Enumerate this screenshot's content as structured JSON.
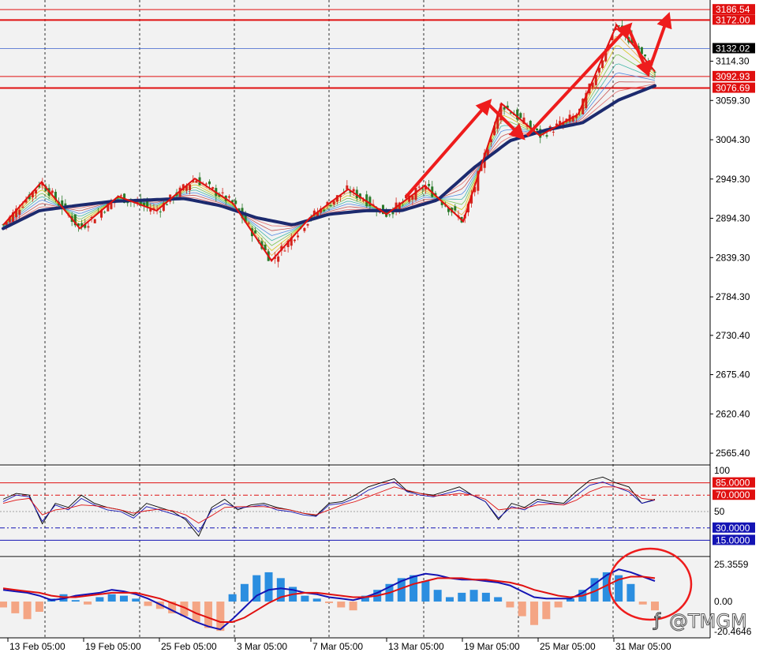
{
  "watermark": "@TMGM",
  "colors": {
    "background": "#ffffff",
    "pane": "#f2f2f2",
    "candle_up": "#d4241c",
    "candle_down": "#2a7a2a",
    "slow_ma": "#1c2a6e",
    "zigzag": "#e01010",
    "annotation": "#ee1c1c",
    "level_line": "#e01010",
    "price_line": "#3a5fcd",
    "hist_pos": "#2b8ee0",
    "hist_neg": "#f4a584",
    "macd_line": "#1414b4",
    "signal_line": "#e01010",
    "grid": "#000000"
  },
  "chart_data": [
    {
      "type": "candlestick",
      "x_tick_labels": [
        "13 Feb 05:00",
        "19 Feb 05:00",
        "25 Feb 05:00",
        "3 Mar 05:00",
        "7 Mar 05:00",
        "13 Mar 05:00",
        "19 Mar 05:00",
        "25 Mar 05:00",
        "31 Mar 05:00"
      ],
      "y_tick_labels": [
        "3114.30",
        "3059.30",
        "3004.30",
        "2949.30",
        "2894.30",
        "2839.30",
        "2784.30",
        "2730.40",
        "2675.40",
        "2620.40",
        "2565.40"
      ],
      "ylim": [
        2550,
        3200
      ],
      "current_price": "3132.02",
      "levels": [
        "3186.54",
        "3172.00",
        "3092.93",
        "3076.69"
      ],
      "zigzag": [
        2885,
        2945,
        2880,
        2925,
        2905,
        2950,
        2915,
        2835,
        2895,
        2935,
        2900,
        2940,
        2890,
        3055,
        3010,
        3040,
        3165,
        3100
      ],
      "slow_ma": [
        2880,
        2905,
        2912,
        2918,
        2920,
        2922,
        2912,
        2895,
        2885,
        2900,
        2905,
        2905,
        2920,
        2965,
        3003,
        3018,
        3028,
        3060,
        3080
      ],
      "arrows": [
        {
          "from": [
            2925,
            2885
          ],
          "to": [
            3055,
            3055
          ]
        },
        {
          "from": [
            3055,
            3055
          ],
          "to": [
            3010,
            3010
          ]
        },
        {
          "from": [
            3010,
            3020
          ],
          "to": [
            3162,
            3162
          ]
        },
        {
          "from": [
            3162,
            3162
          ],
          "to": [
            3100,
            3100
          ]
        },
        {
          "from": [
            3100,
            3100
          ],
          "to": [
            3175,
            3175
          ]
        }
      ]
    },
    {
      "type": "line",
      "y_tick_labels": [
        "100",
        "50"
      ],
      "levels": [
        "85.0000",
        "70.0000",
        "30.0000",
        "15.0000"
      ],
      "ylim": [
        0,
        100
      ],
      "series": [
        {
          "values": [
            65,
            72,
            70,
            35,
            60,
            55,
            70,
            60,
            55,
            52,
            45,
            60,
            55,
            50,
            40,
            20,
            55,
            65,
            52,
            58,
            60,
            55,
            52,
            48,
            45,
            60,
            62,
            70,
            80,
            85,
            90,
            75,
            72,
            70,
            75,
            80,
            70,
            62,
            40,
            60,
            55,
            65,
            62,
            60,
            75,
            88,
            92,
            85,
            80,
            60,
            65
          ]
        },
        {
          "values": [
            62,
            70,
            68,
            38,
            58,
            52,
            66,
            58,
            52,
            50,
            42,
            56,
            52,
            47,
            42,
            25,
            52,
            60,
            54,
            56,
            58,
            52,
            50,
            46,
            44,
            58,
            60,
            66,
            76,
            82,
            86,
            74,
            70,
            68,
            72,
            76,
            70,
            62,
            42,
            56,
            52,
            62,
            60,
            58,
            70,
            82,
            86,
            80,
            74,
            60,
            64
          ]
        },
        {
          "values": [
            60,
            64,
            66,
            46,
            52,
            54,
            58,
            57,
            55,
            52,
            48,
            51,
            53,
            51,
            46,
            36,
            45,
            55,
            56,
            56,
            56,
            54,
            52,
            48,
            46,
            52,
            58,
            62,
            68,
            74,
            80,
            76,
            72,
            69,
            70,
            72,
            70,
            65,
            52,
            54,
            54,
            58,
            59,
            58,
            64,
            74,
            80,
            80,
            76,
            66,
            64
          ]
        }
      ]
    },
    {
      "type": "bar",
      "y_tick_labels": [
        "25.3559",
        "0.00",
        "-20.4646"
      ],
      "ylim": [
        -20.4646,
        25.3559
      ],
      "series": [
        {
          "name": "histogram",
          "values": [
            -4,
            -8,
            -12,
            -7,
            2,
            5,
            1,
            -2,
            3,
            5,
            4,
            2,
            -3,
            -5,
            -8,
            -10,
            -14,
            -18,
            -20,
            5,
            12,
            18,
            20,
            16,
            10,
            4,
            2,
            -1,
            -4,
            -6,
            4,
            8,
            12,
            16,
            18,
            14,
            8,
            3,
            6,
            8,
            6,
            3,
            -4,
            -10,
            -16,
            -12,
            -4,
            2,
            8,
            16,
            20,
            18,
            12,
            -2,
            -6
          ]
        },
        {
          "name": "macd",
          "values": [
            8,
            7,
            6,
            4,
            1,
            2,
            4,
            5,
            6,
            8,
            7,
            5,
            2,
            -2,
            -6,
            -10,
            -14,
            -17,
            -19,
            -12,
            -4,
            4,
            8,
            9,
            8,
            6,
            5,
            3,
            2,
            1,
            3,
            6,
            10,
            14,
            17,
            19,
            18,
            16,
            15,
            15,
            14,
            13,
            11,
            7,
            3,
            2,
            2,
            2,
            6,
            12,
            18,
            22,
            20,
            17,
            14
          ]
        },
        {
          "name": "signal",
          "values": [
            9,
            8,
            7,
            6,
            4,
            3,
            3,
            4,
            5,
            6,
            6,
            6,
            4,
            2,
            -1,
            -4,
            -8,
            -11,
            -14,
            -14,
            -11,
            -6,
            -1,
            3,
            5,
            6,
            6,
            5,
            4,
            3,
            3,
            4,
            6,
            9,
            12,
            14,
            16,
            16,
            16,
            15,
            15,
            14,
            13,
            11,
            8,
            6,
            4,
            3,
            4,
            7,
            11,
            15,
            17,
            17,
            16
          ]
        }
      ]
    }
  ]
}
